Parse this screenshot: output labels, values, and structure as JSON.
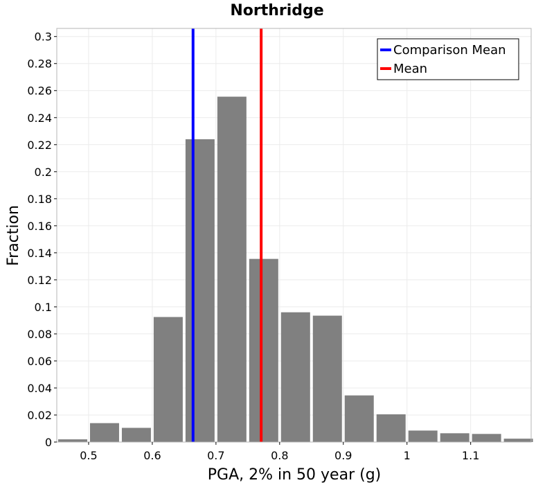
{
  "chart_data": {
    "type": "bar",
    "title": "Northridge",
    "xlabel": "PGA, 2% in 50 year (g)",
    "ylabel": "Fraction",
    "xlim": [
      0.45,
      1.195
    ],
    "ylim": [
      0,
      0.306
    ],
    "x_ticks": [
      {
        "value": 0.5,
        "label": "0.5"
      },
      {
        "value": 0.6,
        "label": "0.6"
      },
      {
        "value": 0.7,
        "label": "0.7"
      },
      {
        "value": 0.8,
        "label": "0.8"
      },
      {
        "value": 0.9,
        "label": "0.9"
      },
      {
        "value": 1.0,
        "label": "1"
      },
      {
        "value": 1.1,
        "label": "1.1"
      }
    ],
    "y_ticks": [
      {
        "value": 0,
        "label": "0"
      },
      {
        "value": 0.02,
        "label": "0.02"
      },
      {
        "value": 0.04,
        "label": "0.04"
      },
      {
        "value": 0.06,
        "label": "0.06"
      },
      {
        "value": 0.08,
        "label": "0.08"
      },
      {
        "value": 0.1,
        "label": "0.1"
      },
      {
        "value": 0.12,
        "label": "0.12"
      },
      {
        "value": 0.14,
        "label": "0.14"
      },
      {
        "value": 0.16,
        "label": "0.16"
      },
      {
        "value": 0.18,
        "label": "0.18"
      },
      {
        "value": 0.2,
        "label": "0.2"
      },
      {
        "value": 0.22,
        "label": "0.22"
      },
      {
        "value": 0.24,
        "label": "0.24"
      },
      {
        "value": 0.26,
        "label": "0.26"
      },
      {
        "value": 0.28,
        "label": "0.28"
      },
      {
        "value": 0.3,
        "label": "0.3"
      }
    ],
    "bin_width": 0.05,
    "bins": [
      {
        "center": 0.475,
        "value": 0.002
      },
      {
        "center": 0.525,
        "value": 0.014
      },
      {
        "center": 0.575,
        "value": 0.0105
      },
      {
        "center": 0.625,
        "value": 0.0925
      },
      {
        "center": 0.675,
        "value": 0.224
      },
      {
        "center": 0.725,
        "value": 0.2555
      },
      {
        "center": 0.775,
        "value": 0.1355
      },
      {
        "center": 0.825,
        "value": 0.096
      },
      {
        "center": 0.875,
        "value": 0.0935
      },
      {
        "center": 0.925,
        "value": 0.0345
      },
      {
        "center": 0.975,
        "value": 0.0205
      },
      {
        "center": 1.025,
        "value": 0.0085
      },
      {
        "center": 1.075,
        "value": 0.0065
      },
      {
        "center": 1.125,
        "value": 0.006
      },
      {
        "center": 1.175,
        "value": 0.0025
      }
    ],
    "bar_color": "#808080",
    "grid": true,
    "vlines": [
      {
        "name": "Comparison Mean",
        "x": 0.664,
        "color": "#0000ff"
      },
      {
        "name": "Mean",
        "x": 0.771,
        "color": "#ff0000"
      }
    ],
    "legend_position": "top-right"
  }
}
